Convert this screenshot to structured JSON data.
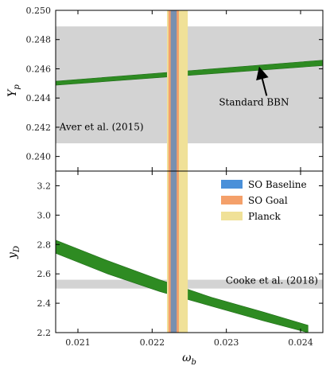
{
  "chart_data": [
    {
      "type": "area",
      "panel": "top",
      "xlabel": "",
      "ylabel": "Y_p",
      "xlim": [
        0.0207,
        0.0243
      ],
      "ylim": [
        0.239,
        0.25
      ],
      "yticks": [
        0.24,
        0.242,
        0.244,
        0.246,
        0.248,
        0.25
      ],
      "ytick_labels": [
        "0.240",
        "0.242",
        "0.244",
        "0.246",
        "0.248",
        "0.250"
      ],
      "grid": false,
      "horizontal_bands": [
        {
          "name": "Aver et al. (2015)",
          "lo": 0.2409,
          "hi": 0.2489,
          "color": "#d3d3d3"
        }
      ],
      "vertical_bands": [
        {
          "name": "Planck",
          "lo": 0.0222,
          "hi": 0.02248,
          "color": "#f0e198"
        },
        {
          "name": "SO Goal",
          "lo": 0.02222,
          "hi": 0.02236,
          "color": "#f4a06a"
        },
        {
          "name": "SO Baseline",
          "lo": 0.02225,
          "hi": 0.02233,
          "color": "#7890b0"
        }
      ],
      "series": [
        {
          "name": "Standard BBN",
          "color": "#2e8b22",
          "x": [
            0.0207,
            0.0243
          ],
          "lower": [
            0.24488,
            0.24622
          ],
          "upper": [
            0.24515,
            0.24659
          ]
        }
      ],
      "annotations": [
        {
          "text": "Standard BBN",
          "xy": [
            0.02345,
            0.2462
          ],
          "text_xy": [
            0.0229,
            0.2435
          ],
          "arrow": true
        },
        {
          "text": "Aver et al. (2015)",
          "text_xy": [
            0.02075,
            0.2418
          ],
          "arrow": false
        }
      ]
    },
    {
      "type": "area",
      "panel": "bottom",
      "xlabel": "ω_b",
      "ylabel": "y_D",
      "xlim": [
        0.0207,
        0.0243
      ],
      "ylim": [
        2.2,
        3.3
      ],
      "xticks": [
        0.021,
        0.022,
        0.023,
        0.024
      ],
      "xtick_labels": [
        "0.021",
        "0.022",
        "0.023",
        "0.024"
      ],
      "yticks": [
        2.2,
        2.4,
        2.6,
        2.8,
        3.0,
        3.2
      ],
      "ytick_labels": [
        "2.2",
        "2.4",
        "2.6",
        "2.8",
        "3.0",
        "3.2"
      ],
      "grid": false,
      "horizontal_bands": [
        {
          "name": "Cooke et al. (2018)",
          "lo": 2.5,
          "hi": 2.56,
          "color": "#d3d3d3"
        }
      ],
      "vertical_bands": [
        {
          "name": "Planck",
          "lo": 0.0222,
          "hi": 0.02248,
          "color": "#f0e198"
        },
        {
          "name": "SO Goal",
          "lo": 0.02222,
          "hi": 0.02236,
          "color": "#f4a06a"
        },
        {
          "name": "SO Baseline",
          "lo": 0.02225,
          "hi": 0.02233,
          "color": "#7890b0"
        }
      ],
      "series": [
        {
          "name": "",
          "color": "#2e8b22",
          "x": [
            0.0207,
            0.0214,
            0.0221,
            0.0228,
            0.0235,
            0.0241
          ],
          "lower": [
            2.74,
            2.6,
            2.48,
            2.38,
            2.28,
            2.2
          ],
          "upper": [
            2.83,
            2.69,
            2.56,
            2.44,
            2.34,
            2.25
          ]
        }
      ],
      "legend": {
        "placement": "upper-right",
        "entries": [
          {
            "label": "SO Baseline",
            "color": "#4a90d9"
          },
          {
            "label": "SO Goal",
            "color": "#f4a06a"
          },
          {
            "label": "Planck",
            "color": "#f0e198"
          }
        ]
      },
      "annotations": [
        {
          "text": "Cooke et al. (2018)",
          "text_xy": [
            0.02382,
            2.532
          ],
          "arrow": false
        }
      ]
    }
  ]
}
